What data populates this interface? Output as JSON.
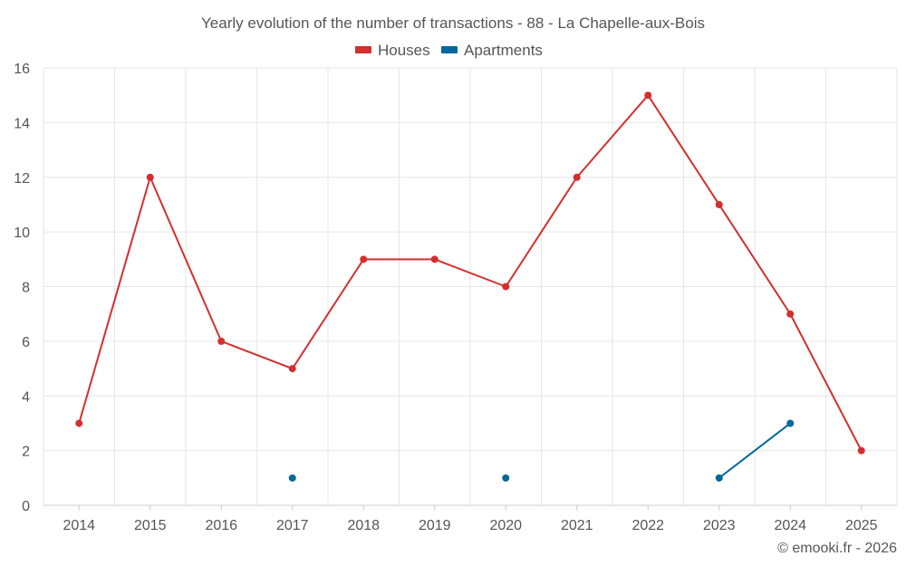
{
  "chart_data": {
    "type": "line",
    "title": "Yearly evolution of the number of transactions - 88 - La Chapelle-aux-Bois",
    "categories": [
      "2014",
      "2015",
      "2016",
      "2017",
      "2018",
      "2019",
      "2020",
      "2021",
      "2022",
      "2023",
      "2024",
      "2025"
    ],
    "ylim": [
      0,
      16
    ],
    "yticks": [
      0,
      2,
      4,
      6,
      8,
      10,
      12,
      14,
      16
    ],
    "grid": true,
    "legend_position": "top-center",
    "series": [
      {
        "name": "Houses",
        "color": "#d32f2f",
        "values": [
          3,
          12,
          6,
          5,
          9,
          9,
          8,
          12,
          15,
          11,
          7,
          2
        ]
      },
      {
        "name": "Apartments",
        "color": "#00689c",
        "values": [
          null,
          null,
          null,
          1,
          null,
          null,
          1,
          null,
          null,
          1,
          3,
          null
        ]
      }
    ]
  },
  "credit": "© emooki.fr - 2026"
}
